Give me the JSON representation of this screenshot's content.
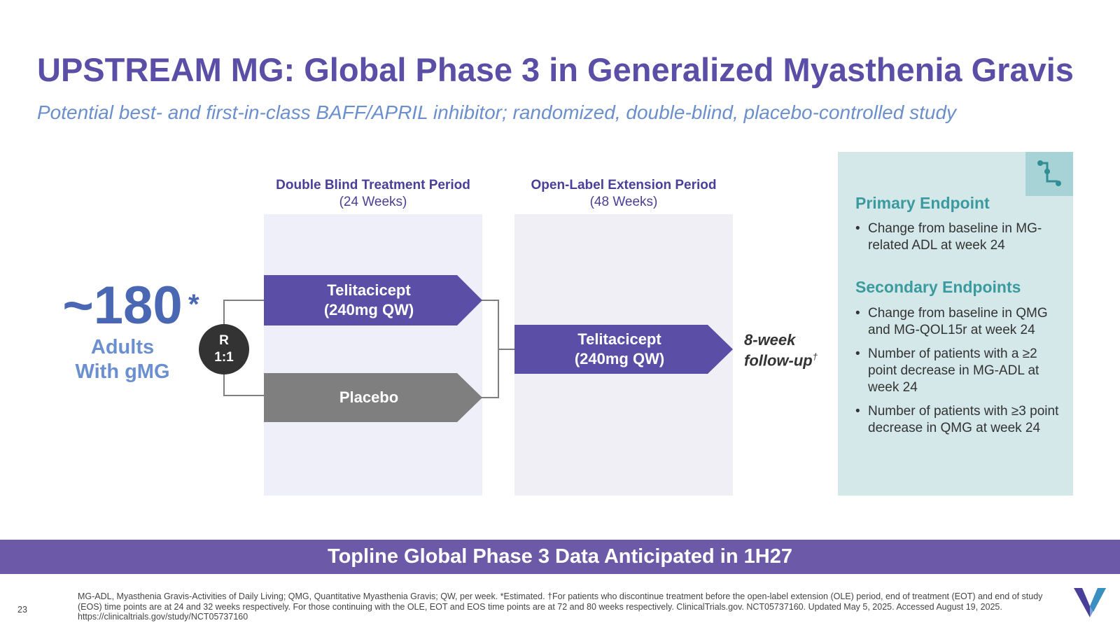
{
  "slide": {
    "title": "UPSTREAM MG: Global Phase 3 in Generalized Myasthenia Gravis",
    "subtitle": "Potential best- and first-in-class BAFF/APRIL inhibitor; randomized, double-blind, placebo-controlled study",
    "page_number": "23"
  },
  "population": {
    "count": "~180",
    "asterisk": "*",
    "label": "Adults\nWith gMG"
  },
  "randomization": {
    "line1": "R",
    "line2": "1:1"
  },
  "periods": {
    "double_blind": {
      "title": "Double Blind Treatment Period",
      "duration": "(24 Weeks)"
    },
    "open_label": {
      "title": "Open-Label Extension Period",
      "duration": "(48 Weeks)"
    }
  },
  "arms": {
    "telitacicept_db": {
      "line1": "Telitacicept",
      "line2": "(240mg QW)",
      "color": "#5a4ea6"
    },
    "placebo": {
      "line1": "Placebo",
      "color": "#7f7f7f"
    },
    "telitacicept_ole": {
      "line1": "Telitacicept",
      "line2": "(240mg QW)",
      "color": "#5a4ea6"
    }
  },
  "followup": {
    "line1": "8-week",
    "line2": "follow-up",
    "dagger": "†"
  },
  "endpoints": {
    "primary_title": "Primary Endpoint",
    "primary": [
      "Change from baseline in MG-related ADL at week 24"
    ],
    "secondary_title": "Secondary Endpoints",
    "secondary": [
      "Change from baseline in QMG and MG-QOL15r at week 24",
      "Number of patients with a ≥2 point decrease in MG-ADL at week 24",
      "Number of patients with ≥3 point decrease in QMG at week 24"
    ]
  },
  "banner": "Topline Global Phase 3 Data Anticipated in 1H27",
  "footnote": "MG-ADL, Myasthenia Gravis-Activities of Daily Living; QMG, Quantitative Myasthenia Gravis; QW, per week. *Estimated. †For patients who discontinue treatment before the open-label extension (OLE) period, end of treatment (EOT) and end of study (EOS) time points are at 24 and 32 weeks respectively. For those continuing with the OLE, EOT and EOS time points are at 72 and 80 weeks respectively. ClinicalTrials.gov. NCT05737160. Updated May 5, 2025. Accessed August 19, 2025. https://clinicaltrials.gov/study/NCT05737160"
}
